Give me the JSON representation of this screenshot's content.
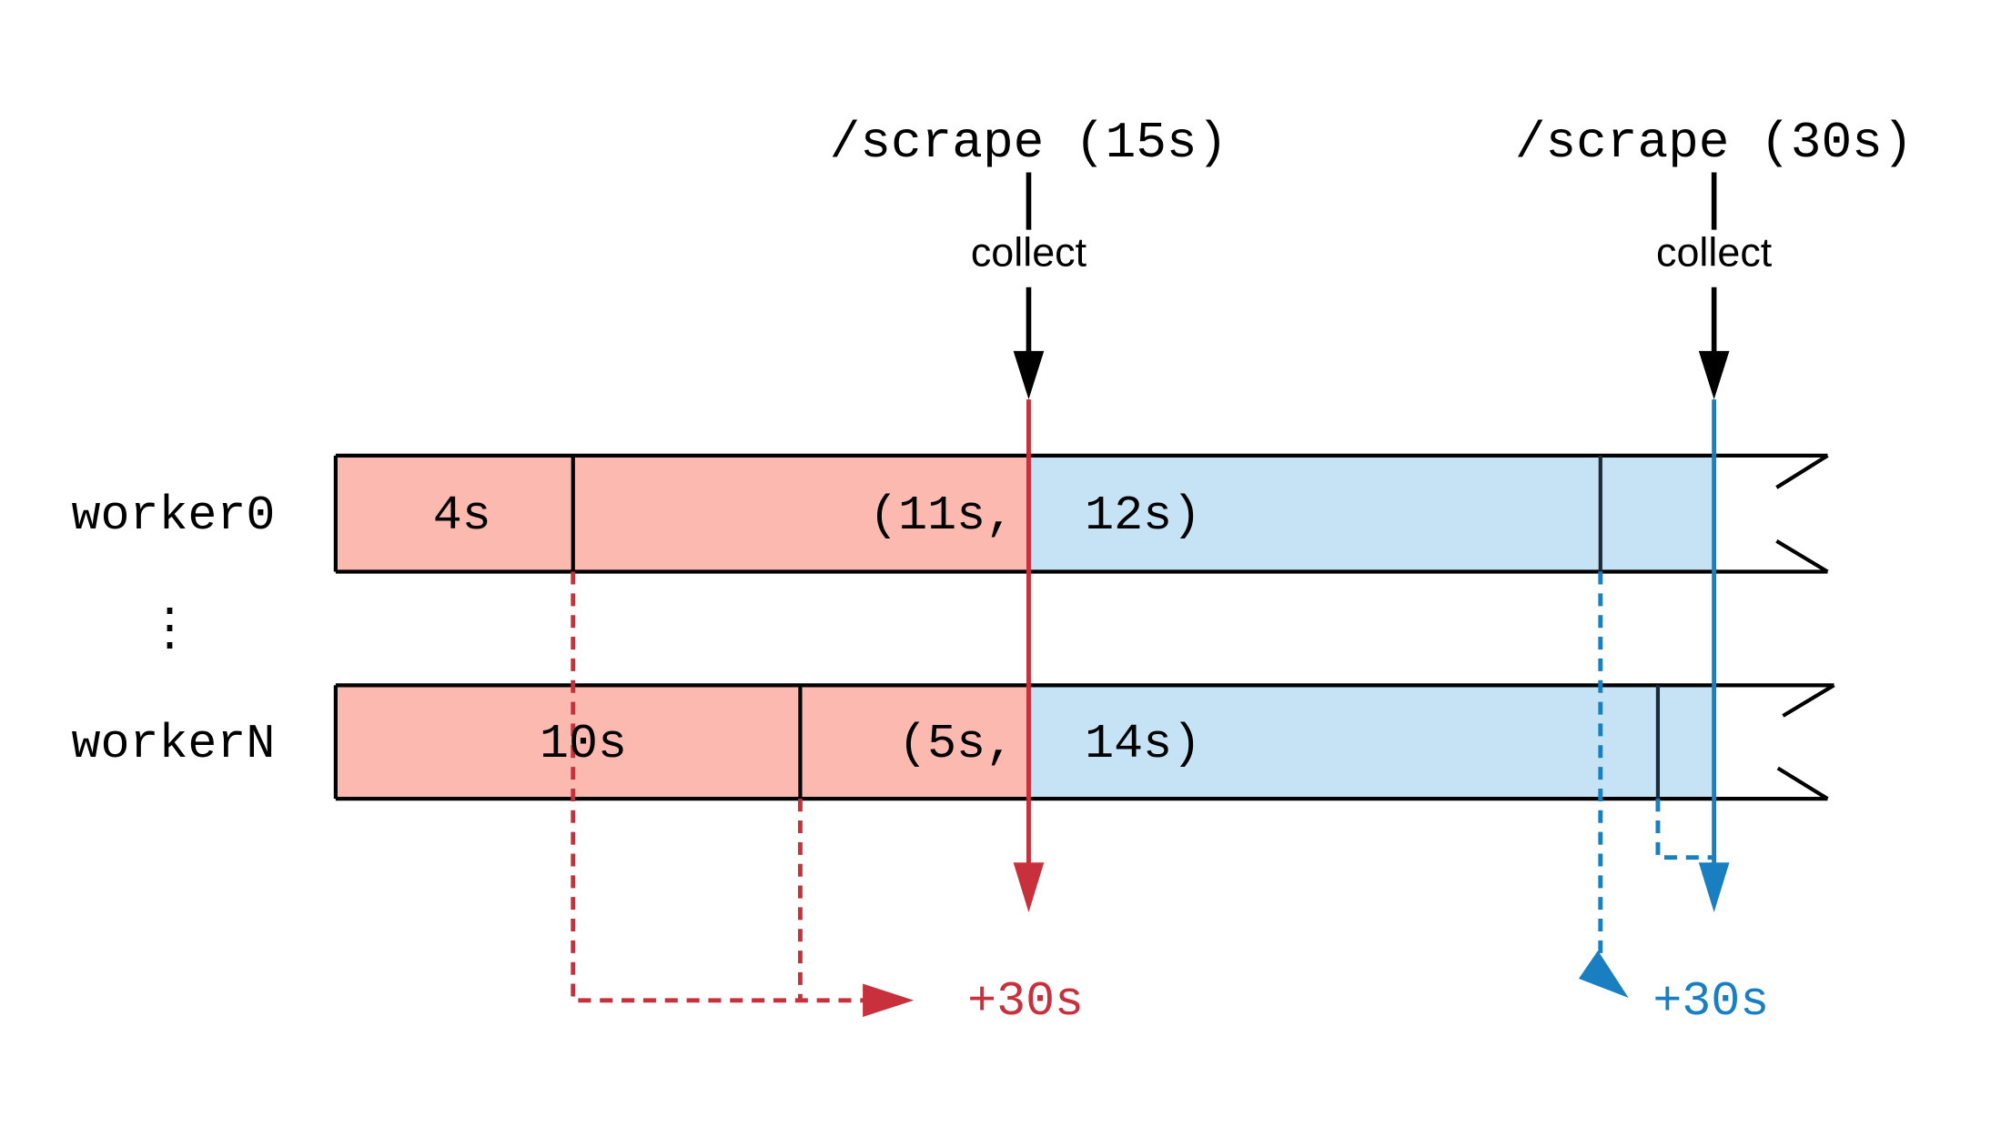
{
  "scrapes": [
    {
      "label": "/scrape (15s)",
      "action": "collect"
    },
    {
      "label": "/scrape (30s)",
      "action": "collect"
    }
  ],
  "workers": [
    {
      "name": "worker0",
      "segments": [
        "4s",
        "(11s,",
        "12s)"
      ]
    },
    {
      "name": "workerN",
      "segments": [
        "10s",
        "(5s,",
        "14s)"
      ]
    }
  ],
  "ellipsis": "⋮",
  "results": [
    "+30s",
    "+30s"
  ]
}
